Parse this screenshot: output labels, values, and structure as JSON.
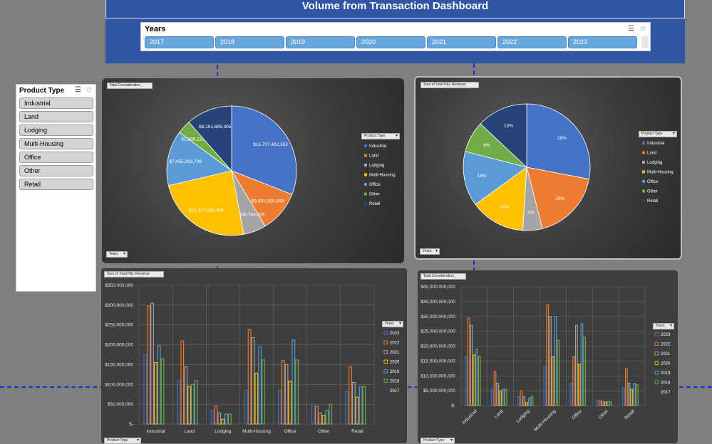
{
  "dashboard": {
    "title": "Volume from Transaction Dashboard"
  },
  "years_slicer": {
    "title": "Years",
    "items": [
      "2017",
      "2018",
      "2019",
      "2020",
      "2021",
      "2022",
      "2023"
    ]
  },
  "product_slicer": {
    "title": "Product Type",
    "items": [
      "Industrial",
      "Land",
      "Lodging",
      "Multi-Housing",
      "Office",
      "Other",
      "Retail"
    ]
  },
  "colors": {
    "product": {
      "Industrial": "#4472c4",
      "Land": "#ed7d31",
      "Lodging": "#a5a5a5",
      "Multi-Housing": "#ffc000",
      "Office": "#5b9bd5",
      "Other": "#70ad47",
      "Retail": "#264478"
    },
    "year": {
      "2023": "#4472c4",
      "2022": "#ed7d31",
      "2021": "#a5a5a5",
      "2020": "#ffc000",
      "2019": "#5b9bd5",
      "2018": "#70ad47",
      "2017": "#264478"
    }
  },
  "chart_data": [
    {
      "id": "pie_consideration",
      "type": "pie",
      "field_button": "Total Consideration_",
      "filter_button": "Years",
      "legend_title": "Product Type",
      "categories": [
        "Industrial",
        "Land",
        "Lodging",
        "Multi-Housing",
        "Office",
        "Other",
        "Retail"
      ],
      "values": [
        16707482353,
        5605889309,
        3056783019,
        13127083309,
        7455083709,
        1846111493,
        6191689305
      ],
      "labels": [
        "$16,707,482,353",
        "$5,605,889,309",
        "$3,056,783,019",
        "$13,127,083,309",
        "$7,455,083,709",
        "$1,846,111,493",
        "$6,191,689,305"
      ]
    },
    {
      "id": "pie_revenue",
      "type": "pie",
      "field_button": "Sum of Total P&L Revenue",
      "filter_button": "Years",
      "legend_title": "Product Type",
      "categories": [
        "Industrial",
        "Land",
        "Lodging",
        "Multi-Housing",
        "Office",
        "Other",
        "Retail"
      ],
      "values": [
        28,
        18,
        5,
        14,
        14,
        8,
        13
      ],
      "labels": [
        "28%",
        "18%",
        "5%",
        "14%",
        "14%",
        "8%",
        "13%"
      ]
    },
    {
      "id": "bar_revenue",
      "type": "bar",
      "field_button": "Sum of Total P&L Revenue",
      "filter_button": "Product Type",
      "legend_title": "Years",
      "categories": [
        "Industrial",
        "Land",
        "Lodging",
        "Multi-Housing",
        "Office",
        "Other",
        "Retail"
      ],
      "ylim": [
        0,
        350000000
      ],
      "ytick_labels": [
        "$-",
        "$50,000,000",
        "$100,000,000",
        "$150,000,000",
        "$200,000,000",
        "$250,000,000",
        "$300,000,000",
        "$350,000,000"
      ],
      "series": [
        {
          "name": "2023",
          "values": [
            175000000,
            110000000,
            35000000,
            85000000,
            85000000,
            50000000,
            82000000
          ]
        },
        {
          "name": "2022",
          "values": [
            298000000,
            210000000,
            45000000,
            238000000,
            160000000,
            45000000,
            145000000
          ]
        },
        {
          "name": "2021",
          "values": [
            305000000,
            145000000,
            28000000,
            218000000,
            150000000,
            28000000,
            105000000
          ]
        },
        {
          "name": "2020",
          "values": [
            155000000,
            95000000,
            12000000,
            128000000,
            108000000,
            22000000,
            68000000
          ]
        },
        {
          "name": "2019",
          "values": [
            198000000,
            100000000,
            25000000,
            195000000,
            212000000,
            35000000,
            95000000
          ]
        },
        {
          "name": "2018",
          "values": [
            165000000,
            110000000,
            25000000,
            162000000,
            162000000,
            50000000,
            95000000
          ]
        },
        {
          "name": "2017",
          "values": [
            0,
            0,
            0,
            0,
            0,
            0,
            0
          ]
        }
      ]
    },
    {
      "id": "bar_consideration",
      "type": "bar",
      "field_button": "Total Consideration_",
      "filter_button": "Product Type",
      "legend_title": "Years",
      "categories": [
        "Industrial",
        "Land",
        "Lodging",
        "Multi-Housing",
        "Office",
        "Other",
        "Retail"
      ],
      "ylim": [
        0,
        40000000000
      ],
      "ytick_labels": [
        "$-",
        "$5,000,000,000",
        "$10,000,000,000",
        "$15,000,000,000",
        "$20,000,000,000",
        "$25,000,000,000",
        "$30,000,000,000",
        "$35,000,000,000",
        "$40,000,000,000"
      ],
      "series": [
        {
          "name": "2023",
          "values": [
            16500000000,
            5500000000,
            3000000000,
            13000000000,
            7500000000,
            1800000000,
            6000000000
          ]
        },
        {
          "name": "2022",
          "values": [
            29500000000,
            11500000000,
            5000000000,
            34000000000,
            16500000000,
            1600000000,
            12500000000
          ]
        },
        {
          "name": "2021",
          "values": [
            27000000000,
            7500000000,
            3000000000,
            30000000000,
            27000000000,
            1500000000,
            7500000000
          ]
        },
        {
          "name": "2020",
          "values": [
            17000000000,
            5000000000,
            1000000000,
            16500000000,
            14000000000,
            1200000000,
            5500000000
          ]
        },
        {
          "name": "2019",
          "values": [
            19000000000,
            5500000000,
            2500000000,
            30000000000,
            27500000000,
            1400000000,
            7500000000
          ]
        },
        {
          "name": "2018",
          "values": [
            16500000000,
            5500000000,
            3000000000,
            22000000000,
            23000000000,
            1200000000,
            7000000000
          ]
        },
        {
          "name": "2017",
          "values": [
            0,
            0,
            0,
            0,
            0,
            0,
            0
          ]
        }
      ]
    }
  ]
}
